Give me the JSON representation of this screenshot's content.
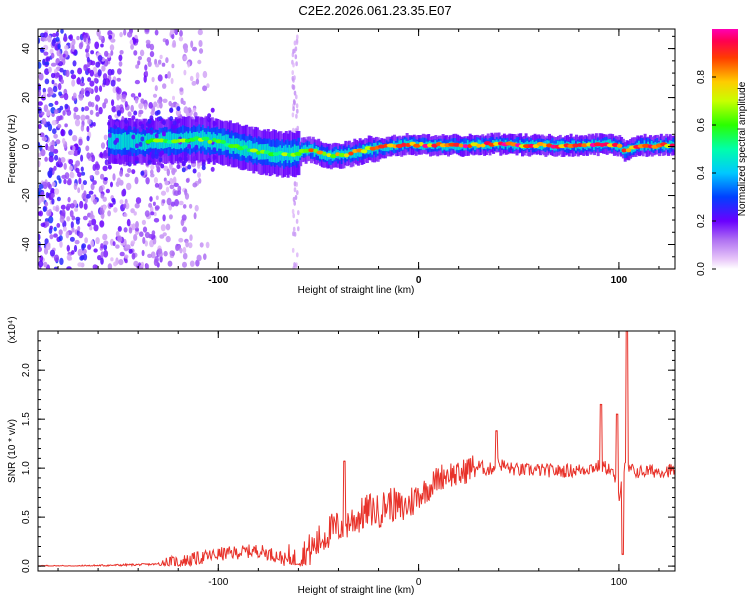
{
  "title": "C2E2.2026.061.23.35.E07",
  "colors": {
    "line": "#e8322a",
    "axis": "#000000"
  },
  "chart_data": [
    {
      "type": "heatmap",
      "title": "C2E2.2026.061.23.35.E07",
      "xlabel": "Height of straight line (km)",
      "ylabel": "Frequency (Hz)",
      "xlim": [
        -190,
        128
      ],
      "ylim": [
        -50,
        48
      ],
      "x_ticks": [
        -100,
        0,
        100
      ],
      "y_ticks": [
        40,
        20,
        0,
        -20,
        -40
      ],
      "colorbar": {
        "label": "Normalized spectral amplitude",
        "range": [
          0.0,
          1.0
        ],
        "ticks": [
          "0.0",
          "0.2",
          "0.4",
          "0.6",
          "0.8"
        ],
        "tick_values": [
          0.0,
          0.2,
          0.4,
          0.6,
          0.8
        ]
      },
      "ridge": {
        "x": [
          -130,
          -120,
          -110,
          -100,
          -90,
          -80,
          -70,
          -62,
          -55,
          -45,
          -35,
          -25,
          -15,
          -5,
          5,
          20,
          40,
          60,
          80,
          95,
          100,
          103,
          110,
          128
        ],
        "y": [
          2,
          2.5,
          3,
          2,
          0,
          -2,
          -3,
          -3,
          -1,
          -4,
          -3,
          -1,
          0,
          1,
          0.5,
          0.5,
          1,
          0.5,
          0.5,
          1,
          0,
          -2,
          0.5,
          0.5
        ]
      }
    },
    {
      "type": "line",
      "xlabel": "Height of straight line (km)",
      "ylabel": "SNR (10 * v/v)",
      "multiplier_label": "(x10⁴)",
      "xlim": [
        -190,
        128
      ],
      "ylim": [
        -0.05,
        2.4
      ],
      "x_ticks": [
        -100,
        0,
        100
      ],
      "y_ticks": [
        0.0,
        0.5,
        1.0,
        1.5,
        2.0
      ],
      "y_tick_labels": [
        "0.0",
        "0.5",
        "1.0",
        "1.5",
        "2.0"
      ],
      "series": [
        {
          "name": "SNR",
          "x": [
            -190,
            -170,
            -150,
            -130,
            -120,
            -110,
            -100,
            -90,
            -80,
            -70,
            -65,
            -62,
            -58,
            -52,
            -45,
            -38,
            -30,
            -24,
            -20,
            -15,
            -12,
            -8,
            -4,
            0,
            5,
            10,
            15,
            20,
            25,
            30,
            35,
            40,
            45,
            50,
            60,
            70,
            80,
            85,
            90,
            95,
            98,
            100,
            102,
            104,
            106,
            110,
            115,
            120,
            128
          ],
          "y": [
            0.0,
            0.0,
            0.01,
            0.02,
            0.04,
            0.08,
            0.12,
            0.14,
            0.16,
            0.1,
            0.05,
            0.02,
            0.1,
            0.2,
            0.35,
            0.42,
            0.5,
            0.58,
            0.55,
            0.65,
            0.62,
            0.58,
            0.65,
            0.72,
            0.8,
            0.9,
            0.95,
            0.92,
            1.0,
            1.02,
            0.98,
            1.05,
            1.0,
            0.98,
            0.98,
            0.97,
            0.98,
            1.0,
            1.02,
            1.0,
            0.9,
            0.7,
            1.0,
            1.0,
            0.98,
            0.96,
            0.97,
            0.97,
            0.98
          ]
        }
      ],
      "spikes": [
        {
          "x": -37,
          "y": 1.07
        },
        {
          "x": 39,
          "y": 1.38
        },
        {
          "x": 91,
          "y": 1.65
        },
        {
          "x": 99,
          "y": 1.55
        },
        {
          "x": 104,
          "y": 2.4
        },
        {
          "x": 102,
          "y": 0.12
        }
      ]
    }
  ]
}
